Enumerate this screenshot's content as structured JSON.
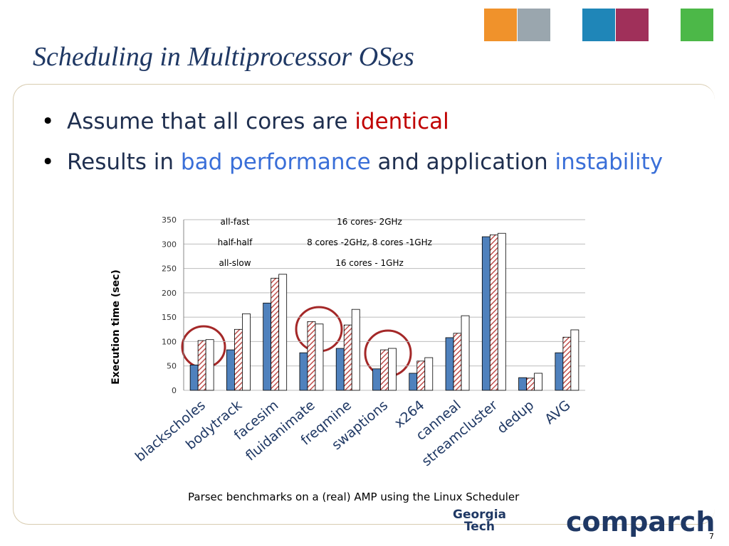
{
  "slide": {
    "title": "Scheduling in Multiprocessor OSes",
    "bullets": [
      {
        "segments": [
          {
            "text": "Assume that all cores are ",
            "color": "#1f2f4f"
          },
          {
            "text": "identical",
            "color": "#c00000"
          }
        ]
      },
      {
        "segments": [
          {
            "text": "Results in ",
            "color": "#1f2f4f"
          },
          {
            "text": "bad performance",
            "color": "#3a6fd8"
          },
          {
            "text": " and application ",
            "color": "#1f2f4f"
          },
          {
            "text": "instability",
            "color": "#3a6fd8"
          }
        ]
      }
    ],
    "caption": "Parsec benchmarks on a (real) AMP using the Linux  Scheduler",
    "logo_left": [
      "Georgia",
      "Tech"
    ],
    "logo_right": "comparch",
    "page_number": "7"
  },
  "chart_data": {
    "type": "bar",
    "y_label": "Execution time (sec)",
    "categories": [
      "blackscholes",
      "bodytrack",
      "facesim",
      "fluidanimate",
      "freqmine",
      "swaptions",
      "x264",
      "canneal",
      "streamcluster",
      "dedup",
      "AVG"
    ],
    "series": [
      {
        "name": "all-fast",
        "description": "16 cores- 2GHz",
        "color": "#4f81bd",
        "values": [
          52,
          83,
          179,
          77,
          86,
          44,
          35,
          108,
          315,
          26,
          77
        ]
      },
      {
        "name": "half-half",
        "description": "8 cores -2GHz, 8 cores -1GHz",
        "color": "#c0504d",
        "pattern": "hatch",
        "values": [
          102,
          125,
          230,
          141,
          134,
          83,
          60,
          117,
          319,
          25,
          109
        ]
      },
      {
        "name": "all-slow",
        "description": "16 cores - 1GHz",
        "color": "#ffffff",
        "values": [
          104,
          157,
          238,
          136,
          166,
          86,
          67,
          153,
          322,
          35,
          124
        ]
      }
    ],
    "ylim": [
      0,
      350
    ],
    "yticks": [
      0,
      50,
      100,
      150,
      200,
      250,
      300,
      350
    ],
    "grid": true
  }
}
